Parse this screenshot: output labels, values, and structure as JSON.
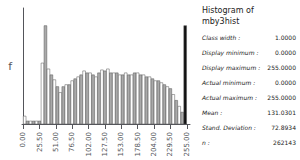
{
  "chart_data": {
    "type": "histogram",
    "title": "Histogram of",
    "subtitle": "mby3hist",
    "ylabel": "f",
    "bins": [
      0,
      4.636363636363637,
      9.272727272727273,
      13.909090909090908,
      18.545454545454547,
      23.181818181818183,
      27.818181818181817,
      32.45454545454545,
      37.09090909090909,
      41.72727272727273,
      46.36363636363637,
      51,
      55.63636363636363,
      60.27272727272727,
      64.9090909090909,
      69.54545454545455,
      74.18181818181819,
      78.81818181818181,
      83.45454545454545,
      88.0909090909091,
      92.72727272727273,
      97.36363636363636,
      102,
      106.63636363636364,
      111.27272727272727,
      115.9090909090909,
      120.54545454545455,
      125.18181818181819,
      129.8181818181818,
      134.45454545454547,
      139.0909090909091,
      143.72727272727272,
      148.36363636363637,
      153,
      157.63636363636363,
      162.27272727272728,
      166.9090909090909,
      171.54545454545453,
      176.1818181818182,
      180.8181818181818,
      185.45454545454547,
      190.0909090909091,
      194.72727272727272,
      199.36363636363637,
      204,
      208.63636363636363,
      213.27272727272728,
      217.9090909090909,
      222.54545454545453,
      227.1818181818182,
      231.8181818181818,
      236.45454545454547,
      241.0909090909091,
      245.72727272727272,
      250.36363636363637,
      255
    ],
    "values": [
      0.08,
      0.03,
      0.03,
      0.03,
      0.03,
      0.03,
      0.62,
      1.0,
      0.56,
      0.5,
      0.45,
      0.38,
      0.32,
      0.38,
      0.4,
      0.4,
      0.44,
      0.46,
      0.48,
      0.5,
      0.54,
      0.52,
      0.52,
      0.5,
      0.48,
      0.52,
      0.55,
      0.54,
      0.56,
      0.52,
      0.52,
      0.52,
      0.5,
      0.5,
      0.52,
      0.5,
      0.5,
      0.52,
      0.52,
      0.5,
      0.5,
      0.48,
      0.48,
      0.46,
      0.44,
      0.44,
      0.42,
      0.4,
      0.38,
      0.36,
      0.3,
      0.24,
      0.18,
      0.12,
      1.0
    ],
    "colors": [
      "#ffffff",
      "#aaaaaa",
      "#ffffff",
      "#aaaaaa",
      "#ffffff",
      "#aaaaaa",
      "#ffffff",
      "#aaaaaa",
      "#ffffff",
      "#aaaaaa",
      "#ffffff",
      "#aaaaaa",
      "#ffffff",
      "#aaaaaa",
      "#ffffff",
      "#aaaaaa",
      "#ffffff",
      "#aaaaaa",
      "#ffffff",
      "#aaaaaa",
      "#ffffff",
      "#aaaaaa",
      "#ffffff",
      "#aaaaaa",
      "#ffffff",
      "#aaaaaa",
      "#ffffff",
      "#aaaaaa",
      "#ffffff",
      "#aaaaaa",
      "#ffffff",
      "#aaaaaa",
      "#ffffff",
      "#aaaaaa",
      "#ffffff",
      "#aaaaaa",
      "#ffffff",
      "#aaaaaa",
      "#ffffff",
      "#aaaaaa",
      "#ffffff",
      "#aaaaaa",
      "#ffffff",
      "#aaaaaa",
      "#ffffff",
      "#aaaaaa",
      "#ffffff",
      "#aaaaaa",
      "#ffffff",
      "#aaaaaa",
      "#ffffff",
      "#aaaaaa",
      "#ffffff",
      "#aaaaaa",
      "#111111"
    ],
    "xlim": [
      -2,
      260
    ],
    "xticks": [
      {
        "value": 0,
        "label": "0.00"
      },
      {
        "value": 25.5,
        "label": "25.50"
      },
      {
        "value": 51,
        "label": "51.00"
      },
      {
        "value": 76.5,
        "label": "76.50"
      },
      {
        "value": 102,
        "label": "102.00"
      },
      {
        "value": 127.5,
        "label": "127.50"
      },
      {
        "value": 153,
        "label": "153.00"
      },
      {
        "value": 178.5,
        "label": "178.50"
      },
      {
        "value": 204,
        "label": "204.00"
      },
      {
        "value": 229.5,
        "label": "229.50"
      },
      {
        "value": 255,
        "label": "255.00"
      }
    ],
    "ylim": [
      0,
      1.18
    ],
    "yticks": [],
    "tick_labels": "x",
    "grid": false,
    "annotations": [
      [
        "Class width :",
        "1.0000"
      ],
      [
        "Display minimum :",
        "0.0000"
      ],
      [
        "Display maximum :",
        "255.0000"
      ],
      [
        "Actual minimum :",
        "0.0000"
      ],
      [
        "Actual maximum :",
        "255.0000"
      ],
      [
        "Mean :",
        "131.0301"
      ],
      [
        "Stand. Deviation :",
        "72.8934"
      ],
      [
        "n :",
        "262143"
      ]
    ]
  }
}
